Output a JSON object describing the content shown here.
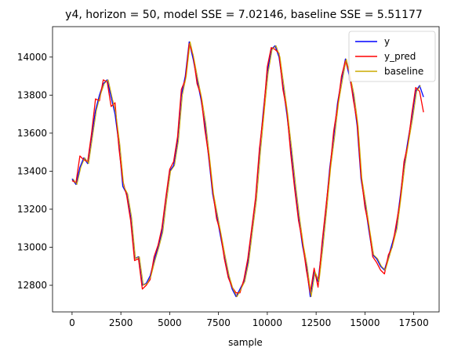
{
  "chart_data": {
    "type": "line",
    "title": "y4, horizon = 50, model SSE = 7.02146, baseline SSE = 5.51177",
    "xlabel": "sample",
    "ylabel": "",
    "xlim": [
      -1000,
      18800
    ],
    "ylim": [
      12660,
      14160
    ],
    "xticks": [
      0,
      2500,
      5000,
      7500,
      10000,
      12500,
      15000,
      17500
    ],
    "yticks": [
      12800,
      13000,
      13200,
      13400,
      13600,
      13800,
      14000
    ],
    "grid": false,
    "legend_position": "top-right",
    "series": [
      {
        "name": "y",
        "color": "#0000ff",
        "x": [
          0,
          200,
          400,
          600,
          800,
          1000,
          1200,
          1400,
          1600,
          1800,
          2000,
          2200,
          2400,
          2600,
          2800,
          3000,
          3200,
          3400,
          3600,
          3800,
          4000,
          4200,
          4400,
          4600,
          4800,
          5000,
          5200,
          5400,
          5600,
          5800,
          6000,
          6200,
          6400,
          6600,
          6800,
          7000,
          7200,
          7400,
          7600,
          7800,
          8000,
          8200,
          8400,
          8600,
          8800,
          9000,
          9200,
          9400,
          9600,
          9800,
          10000,
          10200,
          10400,
          10600,
          10800,
          11000,
          11200,
          11400,
          11600,
          11800,
          12000,
          12200,
          12400,
          12600,
          12800,
          13000,
          13200,
          13400,
          13600,
          13800,
          14000,
          14200,
          14400,
          14600,
          14800,
          15000,
          15200,
          15400,
          15600,
          15800,
          16000,
          16200,
          16400,
          16600,
          16800,
          17000,
          17200,
          17400,
          17600,
          17800,
          18000
        ],
        "values": [
          13360,
          13330,
          13420,
          13470,
          13440,
          13580,
          13720,
          13800,
          13860,
          13880,
          13790,
          13700,
          13540,
          13320,
          13280,
          13160,
          12940,
          12950,
          12800,
          12810,
          12850,
          12930,
          13000,
          13080,
          13250,
          13400,
          13430,
          13560,
          13800,
          13900,
          14080,
          13990,
          13880,
          13780,
          13650,
          13470,
          13280,
          13170,
          13060,
          12950,
          12850,
          12780,
          12740,
          12780,
          12820,
          12920,
          13090,
          13250,
          13500,
          13720,
          13920,
          14040,
          14060,
          14000,
          13850,
          13700,
          13520,
          13330,
          13160,
          13010,
          12900,
          12740,
          12870,
          12820,
          13000,
          13200,
          13420,
          13580,
          13760,
          13880,
          13990,
          13900,
          13800,
          13640,
          13360,
          13230,
          13090,
          12960,
          12940,
          12900,
          12880,
          12950,
          13020,
          13100,
          13260,
          13430,
          13560,
          13680,
          13820,
          13850,
          13790
        ]
      },
      {
        "name": "y_pred",
        "color": "#ff0000",
        "x": [
          0,
          200,
          400,
          600,
          800,
          1000,
          1200,
          1400,
          1600,
          1800,
          2000,
          2200,
          2400,
          2600,
          2800,
          3000,
          3200,
          3400,
          3600,
          3800,
          4000,
          4200,
          4400,
          4600,
          4800,
          5000,
          5200,
          5400,
          5600,
          5800,
          6000,
          6200,
          6400,
          6600,
          6800,
          7000,
          7200,
          7400,
          7600,
          7800,
          8000,
          8200,
          8400,
          8600,
          8800,
          9000,
          9200,
          9400,
          9600,
          9800,
          10000,
          10200,
          10400,
          10600,
          10800,
          11000,
          11200,
          11400,
          11600,
          11800,
          12000,
          12200,
          12400,
          12600,
          12800,
          13000,
          13200,
          13400,
          13600,
          13800,
          14000,
          14200,
          14400,
          14600,
          14800,
          15000,
          15200,
          15400,
          15600,
          15800,
          16000,
          16200,
          16400,
          16600,
          16800,
          17000,
          17200,
          17400,
          17600,
          17800,
          18000
        ],
        "values": [
          13350,
          13340,
          13480,
          13460,
          13450,
          13600,
          13780,
          13770,
          13880,
          13870,
          13740,
          13760,
          13520,
          13350,
          13270,
          13140,
          12930,
          12940,
          12780,
          12800,
          12830,
          12950,
          13010,
          13100,
          13260,
          13410,
          13450,
          13580,
          13830,
          13880,
          14070,
          14010,
          13860,
          13800,
          13620,
          13480,
          13300,
          13150,
          13080,
          12940,
          12840,
          12790,
          12760,
          12760,
          12830,
          12940,
          13100,
          13260,
          13520,
          13700,
          13950,
          14050,
          14040,
          14020,
          13830,
          13720,
          13490,
          13310,
          13140,
          13030,
          12880,
          12760,
          12890,
          12790,
          13020,
          13210,
          13400,
          13610,
          13740,
          13900,
          13980,
          13920,
          13780,
          13660,
          13380,
          13210,
          13110,
          12950,
          12920,
          12880,
          12860,
          12960,
          13000,
          13120,
          13240,
          13450,
          13540,
          13700,
          13840,
          13820,
          13710
        ]
      },
      {
        "name": "baseline",
        "color": "#ccaa00",
        "x": [
          50,
          250,
          450,
          650,
          850,
          1050,
          1250,
          1450,
          1650,
          1850,
          2050,
          2250,
          2450,
          2650,
          2850,
          3050,
          3250,
          3450,
          3650,
          3850,
          4050,
          4250,
          4450,
          4650,
          4850,
          5050,
          5250,
          5450,
          5650,
          5850,
          6050,
          6250,
          6450,
          6650,
          6850,
          7050,
          7250,
          7450,
          7650,
          7850,
          8050,
          8250,
          8450,
          8650,
          8850,
          9050,
          9250,
          9450,
          9650,
          9850,
          10050,
          10250,
          10450,
          10650,
          10850,
          11050,
          11250,
          11450,
          11650,
          11850,
          12050,
          12250,
          12450,
          12650,
          12850,
          13050,
          13250,
          13450,
          13650,
          13850,
          14050,
          14250,
          14450,
          14650,
          14850,
          15050,
          15250,
          15450,
          15650,
          15850,
          16050,
          16250,
          16450,
          16650,
          16850,
          17050,
          17250,
          17450,
          17650,
          17850
        ],
        "values": [
          13360,
          13330,
          13420,
          13470,
          13440,
          13580,
          13720,
          13800,
          13860,
          13880,
          13790,
          13700,
          13540,
          13320,
          13280,
          13160,
          12940,
          12950,
          12800,
          12810,
          12850,
          12930,
          13000,
          13080,
          13250,
          13400,
          13430,
          13560,
          13800,
          13900,
          14080,
          13990,
          13880,
          13780,
          13650,
          13470,
          13280,
          13170,
          13060,
          12950,
          12850,
          12780,
          12740,
          12780,
          12820,
          12920,
          13090,
          13250,
          13500,
          13720,
          13920,
          14040,
          14060,
          14000,
          13850,
          13700,
          13520,
          13330,
          13160,
          13010,
          12900,
          12740,
          12870,
          12820,
          13000,
          13200,
          13420,
          13580,
          13760,
          13880,
          13990,
          13900,
          13800,
          13640,
          13360,
          13230,
          13090,
          12960,
          12940,
          12900,
          12880,
          12950,
          13020,
          13100,
          13260,
          13430,
          13560,
          13680,
          13820,
          13850
        ]
      }
    ]
  }
}
